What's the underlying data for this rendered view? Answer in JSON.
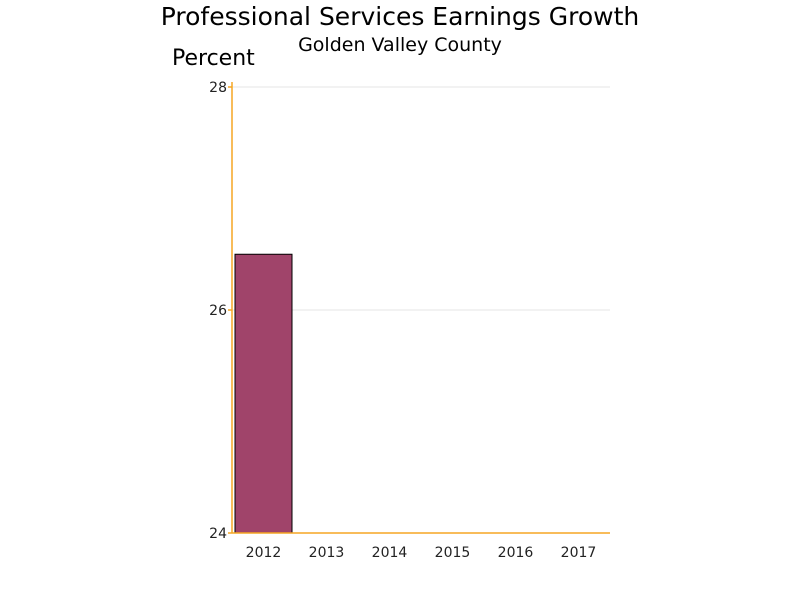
{
  "chart_data": {
    "type": "bar",
    "title": "Professional Services Earnings Growth",
    "subtitle": "Golden Valley County",
    "ylabel": "Percent",
    "xlabel": "",
    "categories": [
      "2012",
      "2013",
      "2014",
      "2015",
      "2016",
      "2017"
    ],
    "values": [
      26.5,
      null,
      null,
      null,
      null,
      null
    ],
    "ylim": [
      24,
      28
    ],
    "yticks": [
      "24",
      "26",
      "28"
    ],
    "grid": true,
    "legend": "none",
    "colors": {
      "bar": "#a0446a",
      "bar_outline": "#000000",
      "axis": "#f5a623",
      "grid": "#e4e4e4"
    }
  }
}
